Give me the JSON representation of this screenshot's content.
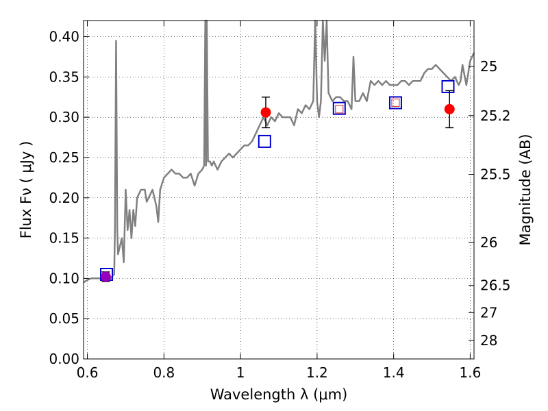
{
  "chart_data": {
    "type": "scatter",
    "xlabel": "Wavelength  λ (μm)",
    "ylabel": "Flux  Fν  ( μJy )",
    "y2label": "Magnitude (AB)",
    "xlim": [
      0.59,
      1.61
    ],
    "ylim": [
      0.0,
      0.42
    ],
    "xticks": [
      0.6,
      0.8,
      1.0,
      1.2,
      1.4,
      1.6
    ],
    "xtick_labels": [
      "0.6",
      "0.8",
      "1",
      "1.2",
      "1.4",
      "1.6"
    ],
    "yticks": [
      0.0,
      0.05,
      0.1,
      0.15,
      0.2,
      0.25,
      0.3,
      0.35,
      0.4
    ],
    "ytick_labels": [
      "0.00",
      "0.05",
      "0.10",
      "0.15",
      "0.20",
      "0.25",
      "0.30",
      "0.35",
      "0.40"
    ],
    "y2ticks": [
      {
        "label": "25",
        "mag": 25
      },
      {
        "label": "25.2",
        "mag": 25.2
      },
      {
        "label": "25.5",
        "mag": 25.5
      },
      {
        "label": "26",
        "mag": 26
      },
      {
        "label": "26.5",
        "mag": 26.5
      },
      {
        "label": "27",
        "mag": 27
      },
      {
        "label": "28",
        "mag": 28
      }
    ],
    "grid": true,
    "colors": {
      "spectrum": "#808080",
      "observed": "#ff0000",
      "model_box": "#0000cc",
      "small_box": "#dd4444",
      "errorbar": "#000000",
      "purple_point": "#9900bb"
    },
    "spectrum": {
      "x": [
        0.59,
        0.6,
        0.61,
        0.62,
        0.63,
        0.64,
        0.65,
        0.66,
        0.67,
        0.672,
        0.675,
        0.678,
        0.68,
        0.69,
        0.695,
        0.7,
        0.705,
        0.71,
        0.715,
        0.72,
        0.725,
        0.73,
        0.74,
        0.75,
        0.755,
        0.76,
        0.77,
        0.78,
        0.785,
        0.79,
        0.8,
        0.81,
        0.82,
        0.83,
        0.84,
        0.85,
        0.86,
        0.87,
        0.88,
        0.89,
        0.9,
        0.905,
        0.908,
        0.91,
        0.912,
        0.915,
        0.92,
        0.925,
        0.93,
        0.94,
        0.95,
        0.96,
        0.97,
        0.98,
        0.99,
        1.0,
        1.01,
        1.02,
        1.03,
        1.04,
        1.05,
        1.06,
        1.07,
        1.08,
        1.09,
        1.1,
        1.11,
        1.12,
        1.13,
        1.14,
        1.15,
        1.16,
        1.17,
        1.18,
        1.19,
        1.195,
        1.2,
        1.205,
        1.21,
        1.215,
        1.22,
        1.225,
        1.23,
        1.24,
        1.25,
        1.26,
        1.27,
        1.28,
        1.29,
        1.295,
        1.3,
        1.31,
        1.32,
        1.33,
        1.34,
        1.35,
        1.36,
        1.37,
        1.38,
        1.39,
        1.4,
        1.41,
        1.42,
        1.43,
        1.44,
        1.45,
        1.46,
        1.47,
        1.48,
        1.49,
        1.5,
        1.51,
        1.52,
        1.53,
        1.54,
        1.55,
        1.56,
        1.57,
        1.575,
        1.58,
        1.59,
        1.6,
        1.61
      ],
      "y": [
        0.095,
        0.098,
        0.1,
        0.1,
        0.1,
        0.1,
        0.1,
        0.1,
        0.105,
        0.16,
        0.395,
        0.16,
        0.13,
        0.15,
        0.12,
        0.21,
        0.16,
        0.185,
        0.15,
        0.185,
        0.165,
        0.2,
        0.21,
        0.21,
        0.195,
        0.2,
        0.21,
        0.19,
        0.17,
        0.21,
        0.225,
        0.23,
        0.235,
        0.23,
        0.23,
        0.225,
        0.225,
        0.23,
        0.215,
        0.23,
        0.235,
        0.24,
        0.42,
        0.24,
        0.42,
        0.245,
        0.245,
        0.24,
        0.245,
        0.235,
        0.245,
        0.25,
        0.255,
        0.25,
        0.255,
        0.26,
        0.265,
        0.265,
        0.27,
        0.28,
        0.29,
        0.3,
        0.29,
        0.3,
        0.295,
        0.305,
        0.3,
        0.3,
        0.3,
        0.29,
        0.31,
        0.305,
        0.315,
        0.31,
        0.32,
        0.42,
        0.32,
        0.3,
        0.32,
        0.42,
        0.37,
        0.42,
        0.33,
        0.32,
        0.325,
        0.325,
        0.32,
        0.32,
        0.31,
        0.375,
        0.32,
        0.32,
        0.33,
        0.32,
        0.345,
        0.34,
        0.345,
        0.34,
        0.345,
        0.34,
        0.34,
        0.34,
        0.345,
        0.345,
        0.34,
        0.345,
        0.345,
        0.345,
        0.355,
        0.36,
        0.36,
        0.365,
        0.36,
        0.355,
        0.35,
        0.345,
        0.35,
        0.34,
        0.345,
        0.365,
        0.34,
        0.37,
        0.38
      ]
    },
    "observed": [
      {
        "x": 0.648,
        "y": 0.102,
        "err": 0.006,
        "color": "#9900bb"
      },
      {
        "x": 1.066,
        "y": 0.306,
        "err": 0.019
      },
      {
        "x": 1.546,
        "y": 0.31,
        "err": 0.023
      }
    ],
    "model_boxes": [
      {
        "x": 0.65,
        "y": 0.105
      },
      {
        "x": 1.063,
        "y": 0.27
      },
      {
        "x": 1.258,
        "y": 0.311
      },
      {
        "x": 1.405,
        "y": 0.318
      },
      {
        "x": 1.542,
        "y": 0.338
      }
    ],
    "small_boxes": [
      {
        "x": 1.258,
        "y": 0.31
      },
      {
        "x": 1.405,
        "y": 0.318
      }
    ]
  }
}
